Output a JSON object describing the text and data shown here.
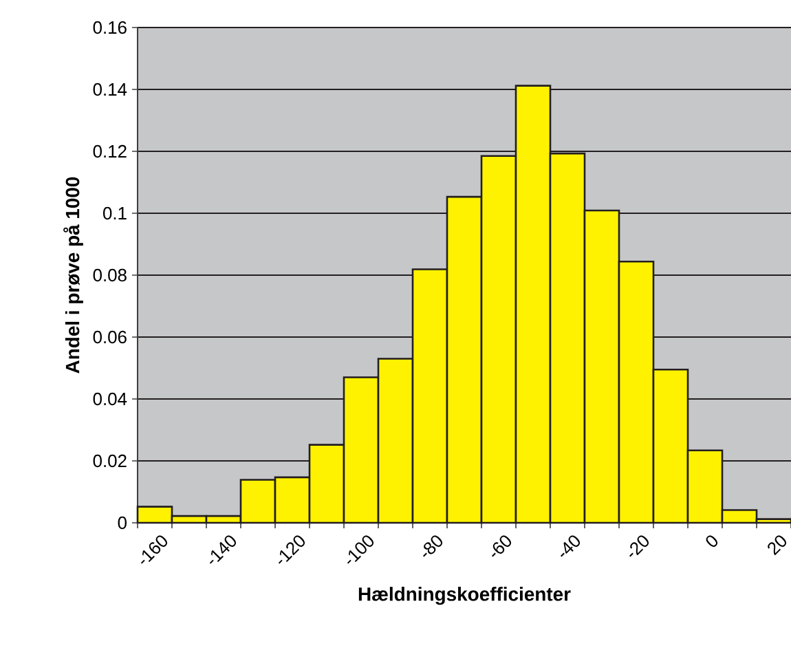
{
  "chart_data": {
    "type": "bar",
    "xlabel": "Hældningskoefficienter",
    "ylabel": "Andel i prøve på 1000",
    "categories": [
      "-160",
      null,
      "-140",
      null,
      "-120",
      null,
      "-100",
      null,
      "-80",
      null,
      "-60",
      null,
      "-40",
      null,
      "-20",
      null,
      "0",
      null,
      "20"
    ],
    "values": [
      0.0052,
      0.0022,
      0.0022,
      0.0139,
      0.0147,
      0.0252,
      0.047,
      0.053,
      0.0819,
      0.1053,
      0.1185,
      0.1412,
      0.1193,
      0.1009,
      0.0844,
      0.0495,
      0.0234,
      0.0041,
      0.0012
    ],
    "color": "#fff200",
    "ylim": [
      0,
      0.16
    ],
    "yticks": [
      0,
      0.02,
      0.04,
      0.06,
      0.08,
      0.1,
      0.12,
      0.14,
      0.16
    ],
    "grid": "y"
  }
}
